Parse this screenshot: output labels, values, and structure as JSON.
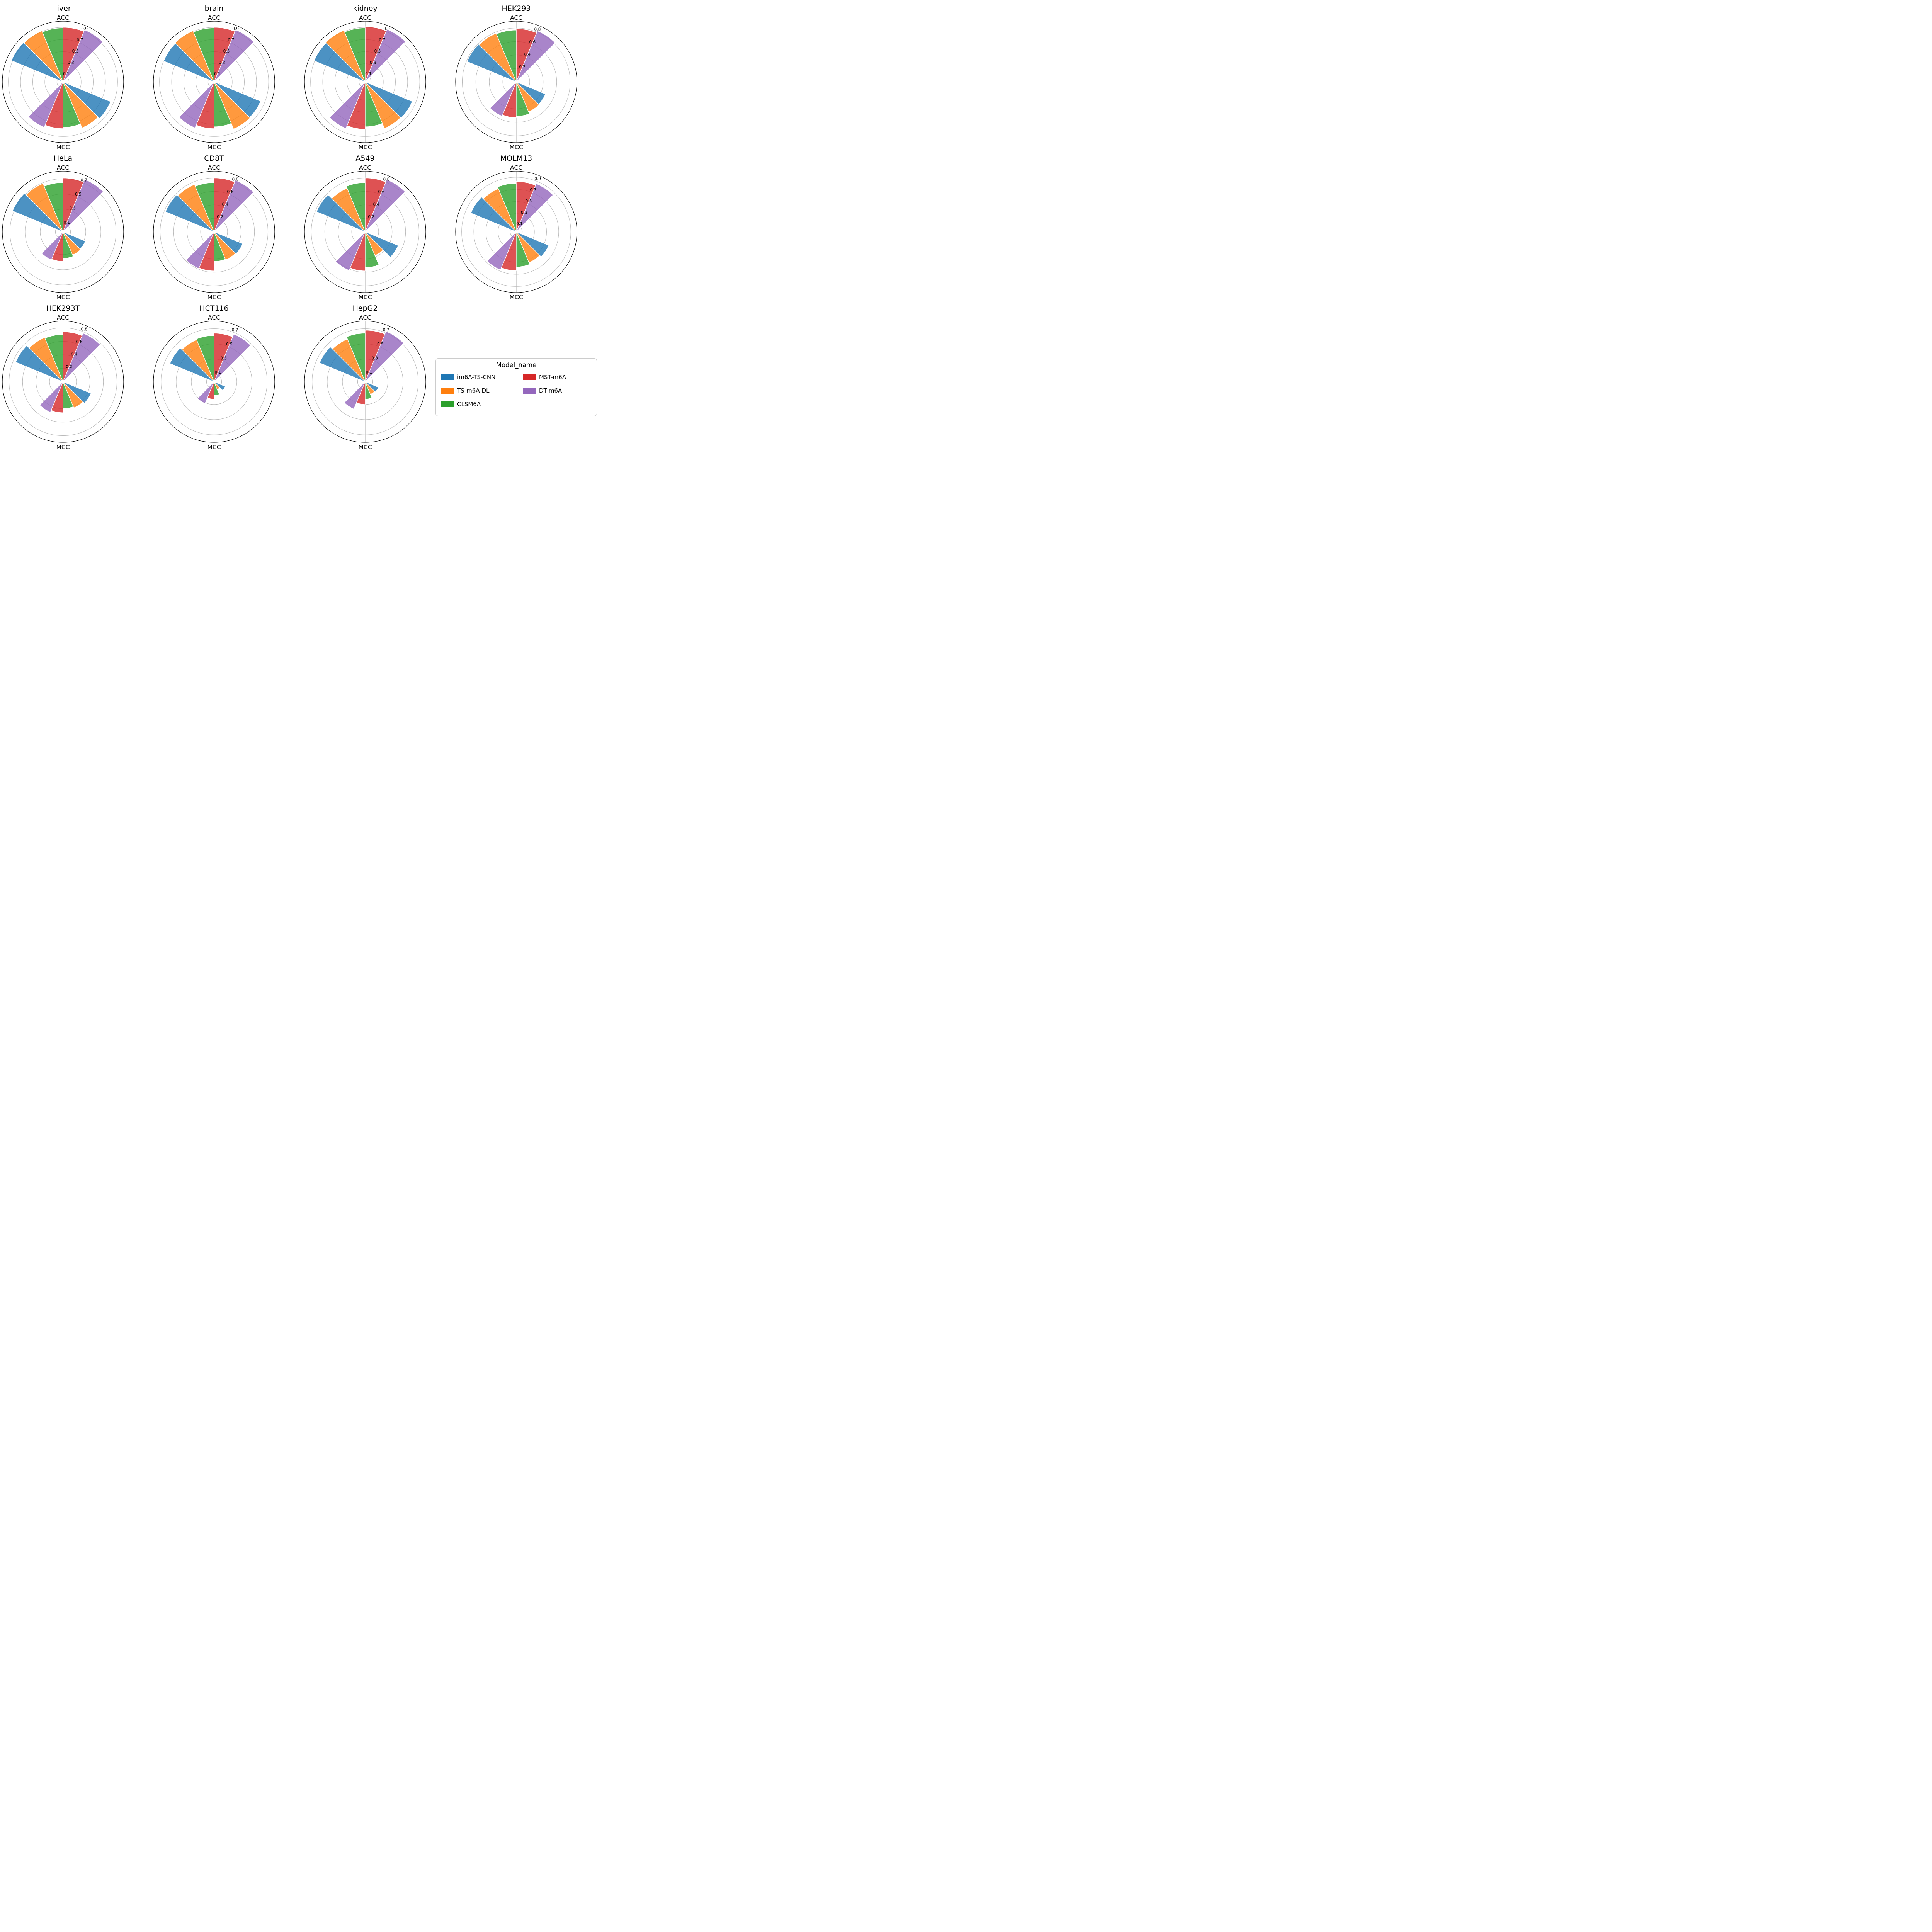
{
  "figure": {
    "background": "#ffffff",
    "outer_circle_color": "#000000",
    "grid_color": "#b8b8b8",
    "bar_edge_color": "#ffffff",
    "bar_fill_opacity": 0.8
  },
  "metric_labels": {
    "top": "ACC",
    "bottom": "MCC"
  },
  "legend": {
    "title": "Model_name",
    "items": [
      {
        "label": "im6A-TS-CNN",
        "color": "#1f77b4"
      },
      {
        "label": "TS-m6A-DL",
        "color": "#ff7f0e"
      },
      {
        "label": "CLSM6A",
        "color": "#2ca02c"
      },
      {
        "label": "MST-m6A",
        "color": "#d62728"
      },
      {
        "label": "DT-m6A",
        "color": "#9467bd"
      }
    ]
  },
  "chart_data": {
    "type": "bar",
    "subtype": "polar-rose-grid",
    "models": [
      "im6A-TS-CNN",
      "TS-m6A-DL",
      "CLSM6A",
      "MST-m6A",
      "DT-m6A"
    ],
    "colors": [
      "#1f77b4",
      "#ff7f0e",
      "#2ca02c",
      "#d62728",
      "#9467bd"
    ],
    "metrics": [
      "ACC",
      "MCC"
    ],
    "legend_position": "bottom-right",
    "grid_on": true,
    "subplots": [
      {
        "title": "liver",
        "rmax": 1.0,
        "rticks": [
          0.1,
          0.3,
          0.5,
          0.7,
          0.9
        ],
        "ACC": [
          0.92,
          0.91,
          0.89,
          0.9,
          0.93
        ],
        "MCC": [
          0.85,
          0.82,
          0.75,
          0.77,
          0.81
        ]
      },
      {
        "title": "brain",
        "rmax": 1.0,
        "rticks": [
          0.1,
          0.3,
          0.5,
          0.7,
          0.9
        ],
        "ACC": [
          0.9,
          0.91,
          0.89,
          0.9,
          0.93
        ],
        "MCC": [
          0.83,
          0.84,
          0.74,
          0.77,
          0.82
        ]
      },
      {
        "title": "kidney",
        "rmax": 1.0,
        "rticks": [
          0.1,
          0.3,
          0.5,
          0.7,
          0.9
        ],
        "ACC": [
          0.91,
          0.92,
          0.89,
          0.91,
          0.94
        ],
        "MCC": [
          0.84,
          0.83,
          0.74,
          0.78,
          0.83
        ]
      },
      {
        "title": "HEK293",
        "rmax": 0.9,
        "rticks": [
          0.2,
          0.4,
          0.6,
          0.8
        ],
        "ACC": [
          0.79,
          0.78,
          0.77,
          0.79,
          0.82
        ],
        "MCC": [
          0.47,
          0.48,
          0.51,
          0.53,
          0.55
        ]
      },
      {
        "title": "HeLa",
        "rmax": 0.8,
        "rticks": [
          0.1,
          0.3,
          0.5,
          0.7
        ],
        "ACC": [
          0.72,
          0.69,
          0.65,
          0.71,
          0.75
        ],
        "MCC": [
          0.32,
          0.33,
          0.35,
          0.39,
          0.4
        ]
      },
      {
        "title": "CD8T",
        "rmax": 0.9,
        "rticks": [
          0.2,
          0.4,
          0.6,
          0.8
        ],
        "ACC": [
          0.78,
          0.76,
          0.73,
          0.8,
          0.83
        ],
        "MCC": [
          0.46,
          0.45,
          0.44,
          0.58,
          0.59
        ]
      },
      {
        "title": "A549",
        "rmax": 0.9,
        "rticks": [
          0.2,
          0.4,
          0.6,
          0.8
        ],
        "ACC": [
          0.78,
          0.7,
          0.73,
          0.8,
          0.84
        ],
        "MCC": [
          0.53,
          0.38,
          0.53,
          0.58,
          0.62
        ]
      },
      {
        "title": "MOLM13",
        "rmax": 1.0,
        "rticks": [
          0.1,
          0.3,
          0.5,
          0.7,
          0.9
        ],
        "ACC": [
          0.81,
          0.77,
          0.8,
          0.83,
          0.86
        ],
        "MCC": [
          0.58,
          0.55,
          0.58,
          0.64,
          0.68
        ]
      },
      {
        "title": "HEK293T",
        "rmax": 0.9,
        "rticks": [
          0.2,
          0.4,
          0.6,
          0.8
        ],
        "ACC": [
          0.76,
          0.71,
          0.7,
          0.74,
          0.78
        ],
        "MCC": [
          0.45,
          0.42,
          0.4,
          0.46,
          0.49
        ]
      },
      {
        "title": "HCT116",
        "rmax": 0.8,
        "rticks": [
          0.1,
          0.3,
          0.5,
          0.7
        ],
        "ACC": [
          0.63,
          0.6,
          0.61,
          0.64,
          0.68
        ],
        "MCC": [
          0.16,
          0.11,
          0.18,
          0.23,
          0.31
        ]
      },
      {
        "title": "HepG2",
        "rmax": 0.8,
        "rticks": [
          0.1,
          0.3,
          0.5,
          0.7
        ],
        "ACC": [
          0.65,
          0.61,
          0.64,
          0.68,
          0.72
        ],
        "MCC": [
          0.19,
          0.18,
          0.23,
          0.3,
          0.39
        ]
      }
    ]
  }
}
